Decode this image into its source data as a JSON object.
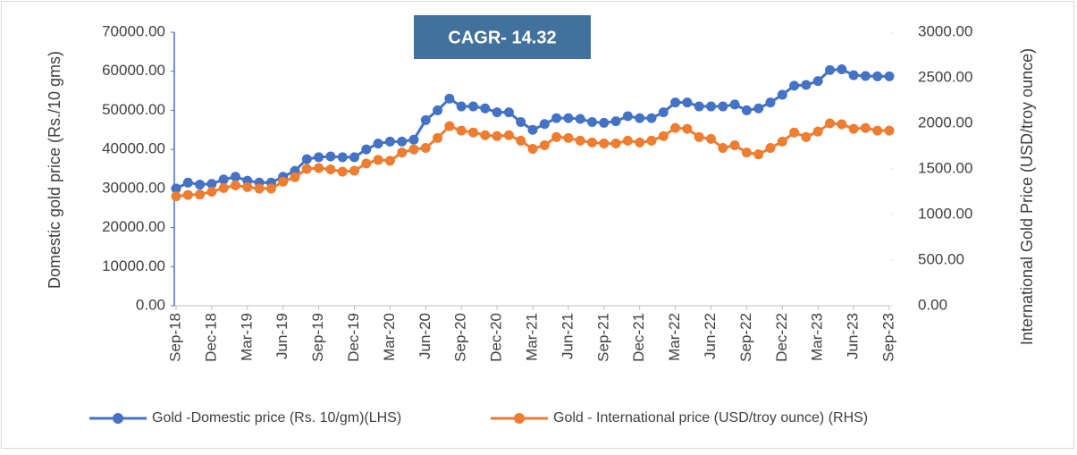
{
  "chart_data": {
    "type": "line",
    "annotation": "CAGR- 14.32",
    "ylabel": "Domestic gold price (Rs./10 gms)",
    "y2label": "International Gold Price (USD/troy ounce)",
    "categories": [
      "Sep-18",
      null,
      null,
      "Dec-18",
      null,
      null,
      "Mar-19",
      null,
      null,
      "Jun-19",
      null,
      null,
      "Sep-19",
      null,
      null,
      "Dec-19",
      null,
      null,
      "Mar-20",
      null,
      null,
      "Jun-20",
      null,
      null,
      "Sep-20",
      null,
      null,
      "Dec-20",
      null,
      null,
      "Mar-21",
      null,
      null,
      "Jun-21",
      null,
      null,
      "Sep-21",
      null,
      null,
      "Dec-21",
      null,
      null,
      "Mar-22",
      null,
      null,
      "Jun-22",
      null,
      null,
      "Sep-22",
      null,
      null,
      "Dec-22",
      null,
      null,
      "Mar-23",
      null,
      null,
      "Jun-23",
      null,
      null,
      "Sep-23"
    ],
    "series": [
      {
        "name": "Gold -Domestic price (Rs. 10/gm)(LHS)",
        "color": "#4472c4",
        "axis": "y",
        "values": [
          30000,
          31500,
          31000,
          31200,
          32300,
          33000,
          32000,
          31500,
          31500,
          33000,
          34500,
          37500,
          38000,
          38200,
          38000,
          38000,
          40000,
          41500,
          42000,
          42000,
          42500,
          47500,
          50000,
          53000,
          51000,
          51000,
          50500,
          49500,
          49500,
          47000,
          45000,
          46500,
          48000,
          48000,
          47800,
          47000,
          46800,
          47200,
          48500,
          48000,
          48000,
          49500,
          52000,
          52000,
          51000,
          51000,
          51000,
          51500,
          50000,
          50500,
          52000,
          54000,
          56300,
          56500,
          57500,
          60300,
          60500,
          59000,
          58800,
          58700,
          58700
        ]
      },
      {
        "name": "Gold - International price (USD/troy ounce) (RHS)",
        "color": "#ed7d31",
        "axis": "y2",
        "values": [
          1200,
          1215,
          1220,
          1250,
          1290,
          1320,
          1300,
          1285,
          1285,
          1360,
          1410,
          1500,
          1510,
          1495,
          1470,
          1480,
          1560,
          1600,
          1590,
          1680,
          1715,
          1730,
          1840,
          1970,
          1920,
          1900,
          1870,
          1860,
          1870,
          1810,
          1720,
          1760,
          1850,
          1840,
          1810,
          1790,
          1780,
          1780,
          1810,
          1790,
          1810,
          1860,
          1950,
          1940,
          1850,
          1830,
          1730,
          1760,
          1680,
          1660,
          1730,
          1800,
          1900,
          1850,
          1910,
          2000,
          1990,
          1940,
          1950,
          1920,
          1920
        ]
      }
    ],
    "ylim": [
      0,
      70000
    ],
    "yticks": [
      {
        "value": 0,
        "label": "0.00"
      },
      {
        "value": 10000,
        "label": "10000.00"
      },
      {
        "value": 20000,
        "label": "20000.00"
      },
      {
        "value": 30000,
        "label": "30000.00"
      },
      {
        "value": 40000,
        "label": "40000.00"
      },
      {
        "value": 50000,
        "label": "50000.00"
      },
      {
        "value": 60000,
        "label": "60000.00"
      },
      {
        "value": 70000,
        "label": "70000.00"
      }
    ],
    "y2lim": [
      0,
      3000
    ],
    "y2ticks": [
      {
        "value": 0,
        "label": "0.00"
      },
      {
        "value": 500,
        "label": "500.00"
      },
      {
        "value": 1000,
        "label": "1000.00"
      },
      {
        "value": 1500,
        "label": "1500.00"
      },
      {
        "value": 2000,
        "label": "2000.00"
      },
      {
        "value": 2500,
        "label": "2500.00"
      },
      {
        "value": 3000,
        "label": "3000.00"
      }
    ],
    "legend": "bottom"
  }
}
